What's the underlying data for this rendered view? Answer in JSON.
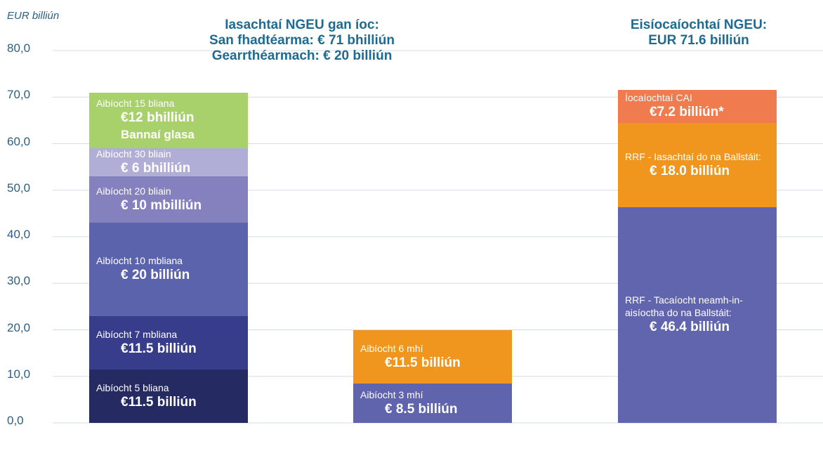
{
  "chart_data": {
    "type": "stacked_bar",
    "y_label": "EUR billiún",
    "annotations": [
      [
        "Iasachtaí NGEU gan íoc:",
        "San fhadtéarma: € 71 bhilliún",
        "Gearrthéarmach: € 20 billiún"
      ],
      [
        "Eisíocaíochtaí NGEU:",
        "EUR 71.6 billiún"
      ]
    ],
    "categories": [
      null,
      null,
      null
    ],
    "ylim": [
      0,
      80
    ],
    "yticks": [
      {
        "value": 0,
        "label": "0,0"
      },
      {
        "value": 10,
        "label": "10,0"
      },
      {
        "value": 20,
        "label": "20,0"
      },
      {
        "value": 30,
        "label": "30,0"
      },
      {
        "value": 40,
        "label": "40,0"
      },
      {
        "value": 50,
        "label": "50,0"
      },
      {
        "value": 60,
        "label": "60,0"
      },
      {
        "value": 70,
        "label": "70,0"
      },
      {
        "value": 80,
        "label": "80,0"
      }
    ],
    "grid": true,
    "series": [
      {
        "name": "Aibíocht 5 bliana",
        "color": "#262a63",
        "values": [
          11.5,
          null,
          null
        ],
        "value_labels": [
          "€11.5 billiún",
          null,
          null
        ]
      },
      {
        "name": "Aibíocht 7 mbliana",
        "color": "#373d8a",
        "values": [
          11.5,
          null,
          null
        ],
        "value_labels": [
          "€11.5 billiún",
          null,
          null
        ]
      },
      {
        "name": "Aibíocht 10 mbliana",
        "color": "#5c63ad",
        "values": [
          20,
          null,
          null
        ],
        "value_labels": [
          "€ 20 billiún",
          null,
          null
        ]
      },
      {
        "name": "Aibíocht 20 bliain",
        "color": "#8580be",
        "values": [
          10,
          null,
          null
        ],
        "value_labels": [
          "€ 10 mbilliún",
          null,
          null
        ]
      },
      {
        "name": "Aibíocht 30 bliain",
        "color": "#b0aed6",
        "values": [
          6,
          null,
          null
        ],
        "value_labels": [
          "€ 6 bhilliún",
          null,
          null
        ]
      },
      {
        "name": "Aibíocht 15 bliana",
        "color": "#a8d06b",
        "values": [
          12,
          null,
          null
        ],
        "value_labels": [
          "€12 bhilliún",
          null,
          null
        ],
        "note": "Bannaí glasa"
      },
      {
        "name": "Aibíocht 3 mhí",
        "color": "#5f64ad",
        "values": [
          null,
          8.5,
          null
        ],
        "value_labels": [
          null,
          "€ 8.5 billiún",
          null
        ]
      },
      {
        "name": "Aibíocht 6 mhí",
        "color": "#f0961e",
        "values": [
          null,
          11.5,
          null
        ],
        "value_labels": [
          null,
          "€11.5 billiún",
          null
        ]
      },
      {
        "name": "RRF - Tacaíocht neamh-in-aisíoctha do na Ballstáit:",
        "color": "#6065ae",
        "values": [
          null,
          null,
          46.4
        ],
        "value_labels": [
          null,
          null,
          "€ 46.4 billiún"
        ]
      },
      {
        "name": "RRF - Iasachtaí do na Ballstáit:",
        "color": "#f0961e",
        "values": [
          null,
          null,
          18.0
        ],
        "value_labels": [
          null,
          null,
          "€ 18.0 billiún"
        ]
      },
      {
        "name": "Íocaíochtaí CAI",
        "color": "#ef7b4f",
        "values": [
          null,
          null,
          7.2
        ],
        "value_labels": [
          null,
          null,
          "€7.2 billiún*"
        ]
      }
    ]
  }
}
